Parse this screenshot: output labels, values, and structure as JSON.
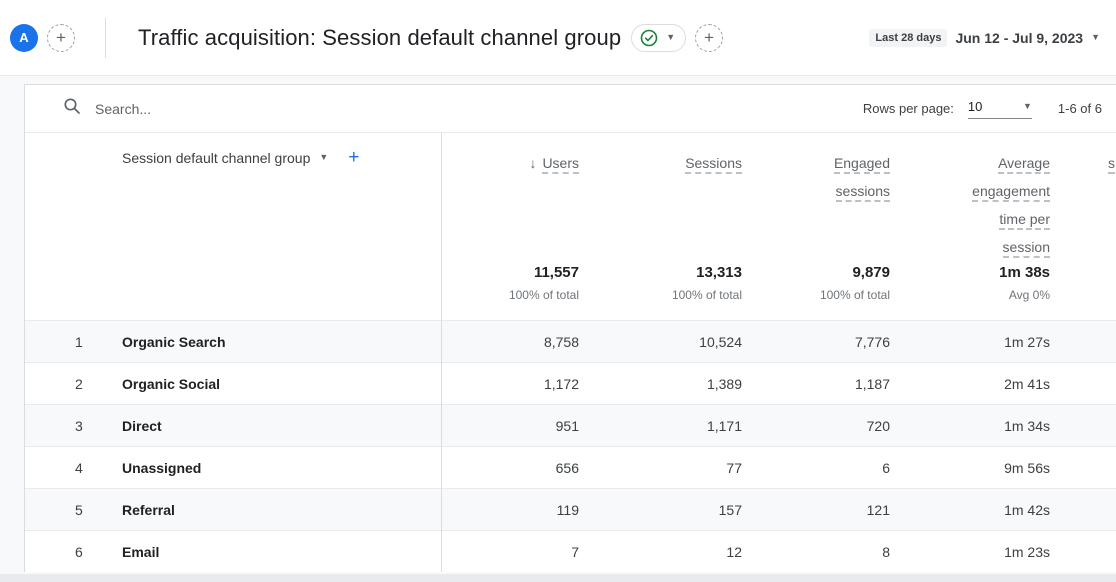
{
  "header": {
    "avatar_label": "A",
    "add_comparison": "+",
    "title": "Traffic acquisition: Session default channel group",
    "add_report": "+",
    "badge": "Last 28 days",
    "date_range": "Jun 12 - Jul 9, 2023"
  },
  "toolbar": {
    "search_placeholder": "Search...",
    "rows_per_page_label": "Rows per page:",
    "rows_per_page_value": "10",
    "range_label": "1-6 of 6"
  },
  "table": {
    "dimension_header": "Session default channel group",
    "add_column": "+",
    "columns": [
      {
        "lines": [
          "Users"
        ],
        "sorted": true,
        "total": "11,557",
        "total_sub": "100% of total"
      },
      {
        "lines": [
          "Sessions"
        ],
        "sorted": false,
        "total": "13,313",
        "total_sub": "100% of total"
      },
      {
        "lines": [
          "Engaged",
          "sessions"
        ],
        "sorted": false,
        "total": "9,879",
        "total_sub": "100% of total"
      },
      {
        "lines": [
          "Average",
          "engagement",
          "time per",
          "session"
        ],
        "sorted": false,
        "total": "1m 38s",
        "total_sub": "Avg 0%"
      },
      {
        "lines": [
          "s"
        ],
        "sorted": false,
        "clipped": true,
        "total": "",
        "total_sub": ""
      }
    ],
    "rows": [
      {
        "num": "1",
        "label": "Organic Search",
        "values": [
          "8,758",
          "10,524",
          "7,776",
          "1m 27s"
        ]
      },
      {
        "num": "2",
        "label": "Organic Social",
        "values": [
          "1,172",
          "1,389",
          "1,187",
          "2m 41s"
        ]
      },
      {
        "num": "3",
        "label": "Direct",
        "values": [
          "951",
          "1,171",
          "720",
          "1m 34s"
        ]
      },
      {
        "num": "4",
        "label": "Unassigned",
        "values": [
          "656",
          "77",
          "6",
          "9m 56s"
        ]
      },
      {
        "num": "5",
        "label": "Referral",
        "values": [
          "119",
          "157",
          "121",
          "1m 42s"
        ]
      },
      {
        "num": "6",
        "label": "Email",
        "values": [
          "7",
          "12",
          "8",
          "1m 23s"
        ]
      }
    ]
  },
  "colors": {
    "accent_blue": "#1a73e8",
    "check_green": "#188038",
    "zebra": "#f8f9fa",
    "border": "#dadce0"
  }
}
